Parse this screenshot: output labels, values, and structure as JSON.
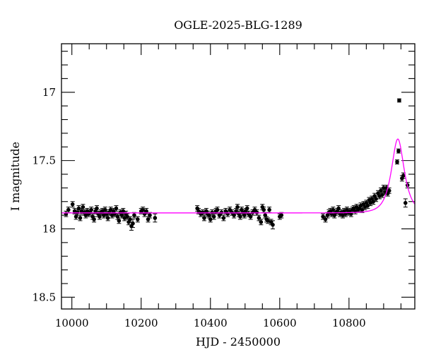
{
  "chart_data": {
    "type": "scatter",
    "title": "OGLE-2025-BLG-1289",
    "xlabel": "HJD - 2450000",
    "ylabel": "I magnitude",
    "xlim": [
      9970,
      10990
    ],
    "ylim": [
      16.645,
      18.586
    ],
    "y_inverted": true,
    "x_ticks": [
      10000,
      10200,
      10400,
      10600,
      10800
    ],
    "x_tick_labels": [
      "10000",
      "10200",
      "10400",
      "10600",
      "10800"
    ],
    "x_minor_step": 50,
    "y_ticks": [
      17,
      17.5,
      18,
      18.5
    ],
    "y_tick_labels": [
      "17",
      "17.5",
      "18",
      "18.5"
    ],
    "y_minor_step": 0.1,
    "grid": false,
    "colors": {
      "points": "#000000",
      "model": "#ff00ff"
    },
    "model": {
      "type": "point-lens",
      "baseline": 17.883,
      "t0": 10941,
      "u0": 0.72,
      "tE": 26.4,
      "peak_mag": 17.345
    },
    "points": [
      [
        9983,
        17.89,
        0.02
      ],
      [
        9990,
        17.86,
        0.02
      ],
      [
        10002,
        17.82,
        0.02
      ],
      [
        10008,
        17.87,
        0.02
      ],
      [
        10012,
        17.91,
        0.02
      ],
      [
        10016,
        17.88,
        0.02
      ],
      [
        10020,
        17.85,
        0.02
      ],
      [
        10024,
        17.92,
        0.02
      ],
      [
        10028,
        17.87,
        0.02
      ],
      [
        10032,
        17.84,
        0.02
      ],
      [
        10036,
        17.88,
        0.02
      ],
      [
        10040,
        17.9,
        0.02
      ],
      [
        10044,
        17.87,
        0.02
      ],
      [
        10048,
        17.89,
        0.02
      ],
      [
        10052,
        17.88,
        0.02
      ],
      [
        10056,
        17.86,
        0.02
      ],
      [
        10060,
        17.91,
        0.02
      ],
      [
        10064,
        17.93,
        0.02
      ],
      [
        10068,
        17.87,
        0.02
      ],
      [
        10072,
        17.85,
        0.02
      ],
      [
        10076,
        17.89,
        0.02
      ],
      [
        10080,
        17.91,
        0.02
      ],
      [
        10084,
        17.88,
        0.02
      ],
      [
        10088,
        17.87,
        0.02
      ],
      [
        10092,
        17.9,
        0.02
      ],
      [
        10096,
        17.86,
        0.02
      ],
      [
        10100,
        17.89,
        0.02
      ],
      [
        10104,
        17.92,
        0.02
      ],
      [
        10108,
        17.88,
        0.02
      ],
      [
        10112,
        17.86,
        0.02
      ],
      [
        10116,
        17.9,
        0.02
      ],
      [
        10120,
        17.87,
        0.02
      ],
      [
        10124,
        17.89,
        0.02
      ],
      [
        10128,
        17.85,
        0.02
      ],
      [
        10132,
        17.91,
        0.02
      ],
      [
        10136,
        17.94,
        0.02
      ],
      [
        10140,
        17.88,
        0.02
      ],
      [
        10144,
        17.9,
        0.02
      ],
      [
        10148,
        17.87,
        0.02
      ],
      [
        10152,
        17.92,
        0.02
      ],
      [
        10156,
        17.89,
        0.02
      ],
      [
        10160,
        17.91,
        0.02
      ],
      [
        10164,
        17.95,
        0.02
      ],
      [
        10168,
        17.93,
        0.02
      ],
      [
        10172,
        17.98,
        0.03
      ],
      [
        10176,
        17.96,
        0.03
      ],
      [
        10180,
        17.9,
        0.02
      ],
      [
        10190,
        17.93,
        0.02
      ],
      [
        10200,
        17.87,
        0.02
      ],
      [
        10205,
        17.86,
        0.02
      ],
      [
        10210,
        17.89,
        0.02
      ],
      [
        10215,
        17.87,
        0.02
      ],
      [
        10220,
        17.93,
        0.02
      ],
      [
        10225,
        17.9,
        0.02
      ],
      [
        10240,
        17.92,
        0.03
      ],
      [
        10362,
        17.85,
        0.02
      ],
      [
        10366,
        17.87,
        0.02
      ],
      [
        10372,
        17.89,
        0.02
      ],
      [
        10378,
        17.88,
        0.02
      ],
      [
        10382,
        17.92,
        0.02
      ],
      [
        10388,
        17.87,
        0.02
      ],
      [
        10392,
        17.89,
        0.02
      ],
      [
        10396,
        17.9,
        0.02
      ],
      [
        10400,
        17.93,
        0.02
      ],
      [
        10405,
        17.88,
        0.02
      ],
      [
        10410,
        17.91,
        0.02
      ],
      [
        10416,
        17.87,
        0.02
      ],
      [
        10420,
        17.86,
        0.02
      ],
      [
        10426,
        17.9,
        0.02
      ],
      [
        10432,
        17.88,
        0.02
      ],
      [
        10438,
        17.92,
        0.02
      ],
      [
        10444,
        17.87,
        0.02
      ],
      [
        10450,
        17.89,
        0.02
      ],
      [
        10456,
        17.86,
        0.02
      ],
      [
        10462,
        17.88,
        0.02
      ],
      [
        10468,
        17.9,
        0.02
      ],
      [
        10474,
        17.87,
        0.02
      ],
      [
        10478,
        17.84,
        0.02
      ],
      [
        10482,
        17.89,
        0.02
      ],
      [
        10486,
        17.91,
        0.02
      ],
      [
        10490,
        17.86,
        0.02
      ],
      [
        10494,
        17.88,
        0.02
      ],
      [
        10498,
        17.9,
        0.02
      ],
      [
        10502,
        17.87,
        0.02
      ],
      [
        10506,
        17.85,
        0.02
      ],
      [
        10510,
        17.89,
        0.02
      ],
      [
        10516,
        17.91,
        0.02
      ],
      [
        10522,
        17.88,
        0.02
      ],
      [
        10528,
        17.86,
        0.02
      ],
      [
        10534,
        17.88,
        0.02
      ],
      [
        10540,
        17.92,
        0.02
      ],
      [
        10546,
        17.95,
        0.02
      ],
      [
        10550,
        17.84,
        0.02
      ],
      [
        10554,
        17.86,
        0.02
      ],
      [
        10558,
        17.9,
        0.02
      ],
      [
        10562,
        17.93,
        0.02
      ],
      [
        10566,
        17.94,
        0.02
      ],
      [
        10570,
        17.86,
        0.02
      ],
      [
        10575,
        17.95,
        0.02
      ],
      [
        10580,
        17.97,
        0.03
      ],
      [
        10600,
        17.91,
        0.02
      ],
      [
        10605,
        17.9,
        0.02
      ],
      [
        10725,
        17.91,
        0.02
      ],
      [
        10732,
        17.93,
        0.02
      ],
      [
        10738,
        17.9,
        0.02
      ],
      [
        10742,
        17.88,
        0.02
      ],
      [
        10746,
        17.87,
        0.02
      ],
      [
        10750,
        17.89,
        0.02
      ],
      [
        10754,
        17.86,
        0.02
      ],
      [
        10758,
        17.9,
        0.02
      ],
      [
        10762,
        17.88,
        0.02
      ],
      [
        10766,
        17.87,
        0.02
      ],
      [
        10770,
        17.85,
        0.02
      ],
      [
        10774,
        17.89,
        0.02
      ],
      [
        10778,
        17.88,
        0.02
      ],
      [
        10782,
        17.9,
        0.02
      ],
      [
        10786,
        17.87,
        0.02
      ],
      [
        10790,
        17.89,
        0.02
      ],
      [
        10794,
        17.86,
        0.02
      ],
      [
        10798,
        17.88,
        0.02
      ],
      [
        10802,
        17.87,
        0.02
      ],
      [
        10806,
        17.89,
        0.02
      ],
      [
        10810,
        17.86,
        0.02
      ],
      [
        10814,
        17.85,
        0.02
      ],
      [
        10818,
        17.87,
        0.02
      ],
      [
        10822,
        17.84,
        0.02
      ],
      [
        10826,
        17.86,
        0.02
      ],
      [
        10830,
        17.85,
        0.02
      ],
      [
        10834,
        17.83,
        0.02
      ],
      [
        10838,
        17.86,
        0.02
      ],
      [
        10842,
        17.82,
        0.02
      ],
      [
        10846,
        17.84,
        0.02
      ],
      [
        10850,
        17.81,
        0.02
      ],
      [
        10854,
        17.83,
        0.02
      ],
      [
        10858,
        17.79,
        0.02
      ],
      [
        10862,
        17.81,
        0.02
      ],
      [
        10866,
        17.78,
        0.02
      ],
      [
        10870,
        17.8,
        0.02
      ],
      [
        10874,
        17.76,
        0.02
      ],
      [
        10878,
        17.78,
        0.02
      ],
      [
        10884,
        17.74,
        0.02
      ],
      [
        10888,
        17.76,
        0.02
      ],
      [
        10892,
        17.72,
        0.02
      ],
      [
        10896,
        17.75,
        0.02
      ],
      [
        10900,
        17.7,
        0.02
      ],
      [
        10904,
        17.73,
        0.02
      ],
      [
        10908,
        17.7,
        0.02
      ],
      [
        10912,
        17.74,
        0.02
      ],
      [
        10916,
        17.72,
        0.02
      ],
      [
        10939,
        17.51,
        0.015
      ],
      [
        10943,
        17.43,
        0.015
      ],
      [
        10945,
        17.06,
        0.012
      ],
      [
        10953,
        17.63,
        0.02
      ],
      [
        10957,
        17.61,
        0.02
      ],
      [
        10963,
        17.81,
        0.03
      ],
      [
        10969,
        17.68,
        0.02
      ]
    ]
  }
}
